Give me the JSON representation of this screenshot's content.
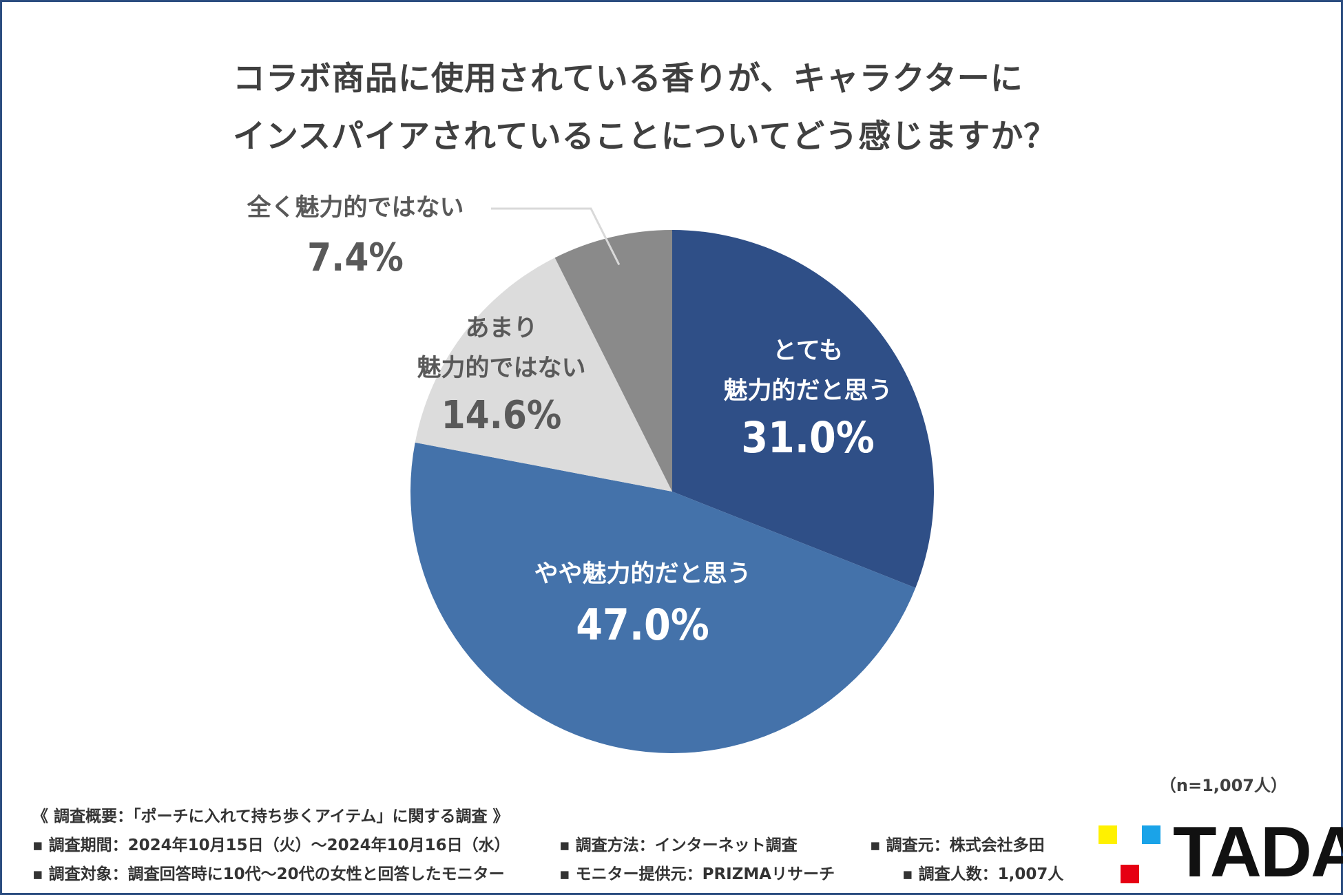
{
  "title": {
    "line1": "コラボ商品に使用されている香りが、キャラクターに",
    "line2": "インスパイアされていることについてどう感じますか？"
  },
  "chart_data": {
    "type": "pie",
    "title": "コラボ商品に使用されている香りが、キャラクターにインスパイアされていることについてどう感じますか？",
    "slices": [
      {
        "label_lines": [
          "とても",
          "魅力的だと思う"
        ],
        "value": 31.0,
        "value_label": "31.0%",
        "color": "#2f4f87",
        "text_color": "#ffffff"
      },
      {
        "label_lines": [
          "やや魅力的だと思う"
        ],
        "value": 47.0,
        "value_label": "47.0%",
        "color": "#4472aa",
        "text_color": "#ffffff"
      },
      {
        "label_lines": [
          "あまり",
          "魅力的ではない"
        ],
        "value": 14.6,
        "value_label": "14.6%",
        "color": "#dcdcdc",
        "text_color": "#595959"
      },
      {
        "label_lines": [
          "全く魅力的ではない"
        ],
        "value": 7.4,
        "value_label": "7.4%",
        "color": "#8a8a8a",
        "text_color": "#595959"
      }
    ],
    "start_angle": "12 o'clock",
    "direction": "clockwise"
  },
  "sample_size": "（n=1,007人）",
  "footer": {
    "heading": "《 調査概要：「ポーチに入れて持ち歩くアイテム」に関する調査 》",
    "period": "▪ 調査期間：2024年10月15日（火）〜2024年10月16日（水）",
    "method": "▪ 調査方法：インターネット調査",
    "source": "▪ 調査元：株式会社多田",
    "target": "▪ 調査対象：調査回答時に10代〜20代の女性と回答したモニター",
    "provider": "▪ モニター提供元：PRIZMAリサーチ",
    "count": "▪ 調査人数：1,007人"
  },
  "logo": {
    "text": "TADA",
    "colors": {
      "yellow": "#fff100",
      "blue": "#1aa3e8",
      "red": "#e60012"
    }
  }
}
